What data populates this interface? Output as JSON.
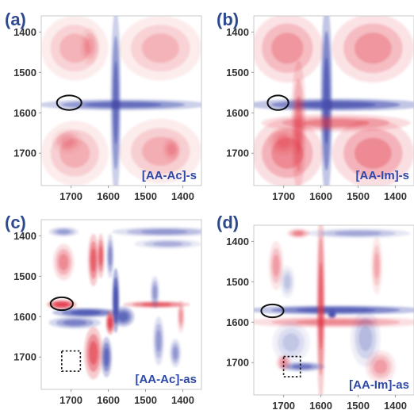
{
  "chart_data": [
    {
      "type": "heatmap",
      "panel_label": "(a)",
      "tag": "[AA-Ac]-s",
      "x_ticks": [
        1700,
        1600,
        1500,
        1400
      ],
      "y_ticks": [
        1400,
        1500,
        1600,
        1700
      ],
      "xlim": [
        1780,
        1350
      ],
      "ylim": [
        1360,
        1780
      ],
      "colors": {
        "positive": "#e03040",
        "negative": "#4550b0"
      },
      "features": [
        {
          "x": 1580,
          "y": 1580,
          "sign": 1,
          "rx": 11,
          "ry": 11,
          "a": 0.9
        },
        {
          "x": 1580,
          "y": 1575,
          "sign": -1,
          "rx": 14,
          "ry": 230,
          "a": 0.5
        },
        {
          "x": 1560,
          "y": 1580,
          "sign": -1,
          "rx": 230,
          "ry": 14,
          "a": 0.5
        },
        {
          "x": 1690,
          "y": 1440,
          "sign": 1,
          "rx": 90,
          "ry": 80,
          "a": 0.17
        },
        {
          "x": 1650,
          "y": 1435,
          "sign": 1,
          "rx": 25,
          "ry": 45,
          "a": 0.15
        },
        {
          "x": 1460,
          "y": 1440,
          "sign": 1,
          "rx": 110,
          "ry": 80,
          "a": 0.17
        },
        {
          "x": 1690,
          "y": 1700,
          "sign": 1,
          "rx": 90,
          "ry": 80,
          "a": 0.18
        },
        {
          "x": 1710,
          "y": 1670,
          "sign": 1,
          "rx": 40,
          "ry": 30,
          "a": 0.15
        },
        {
          "x": 1460,
          "y": 1695,
          "sign": 1,
          "rx": 110,
          "ry": 80,
          "a": 0.18
        },
        {
          "x": 1430,
          "y": 1690,
          "sign": 1,
          "rx": 25,
          "ry": 30,
          "a": 0.16
        }
      ],
      "solid_circle": {
        "x": 1705,
        "y": 1575,
        "rx": 33,
        "ry": 18
      },
      "dotted_box": null
    },
    {
      "type": "heatmap",
      "panel_label": "(b)",
      "tag": "[AA-Im]-s",
      "x_ticks": [
        1700,
        1600,
        1500,
        1400
      ],
      "y_ticks": [
        1400,
        1500,
        1600,
        1700
      ],
      "xlim": [
        1780,
        1350
      ],
      "ylim": [
        1360,
        1780
      ],
      "colors": {
        "positive": "#e03040",
        "negative": "#4550b0"
      },
      "features": [
        {
          "x": 1580,
          "y": 1580,
          "sign": 1,
          "rx": 11,
          "ry": 11,
          "a": 0.9
        },
        {
          "x": 1585,
          "y": 1570,
          "sign": -1,
          "rx": 16,
          "ry": 240,
          "a": 0.6
        },
        {
          "x": 1560,
          "y": 1580,
          "sign": -1,
          "rx": 240,
          "ry": 16,
          "a": 0.6
        },
        {
          "x": 1660,
          "y": 1630,
          "sign": 1,
          "rx": 20,
          "ry": 160,
          "a": 0.3
        },
        {
          "x": 1560,
          "y": 1625,
          "sign": 1,
          "rx": 200,
          "ry": 22,
          "a": 0.3
        },
        {
          "x": 1690,
          "y": 1440,
          "sign": 1,
          "rx": 95,
          "ry": 85,
          "a": 0.25
        },
        {
          "x": 1460,
          "y": 1440,
          "sign": 1,
          "rx": 110,
          "ry": 85,
          "a": 0.25
        },
        {
          "x": 1690,
          "y": 1700,
          "sign": 1,
          "rx": 95,
          "ry": 85,
          "a": 0.28
        },
        {
          "x": 1460,
          "y": 1700,
          "sign": 1,
          "rx": 110,
          "ry": 85,
          "a": 0.28
        },
        {
          "x": 1700,
          "y": 1670,
          "sign": 1,
          "rx": 40,
          "ry": 35,
          "a": 0.2
        }
      ],
      "solid_circle": {
        "x": 1715,
        "y": 1575,
        "rx": 28,
        "ry": 18
      },
      "dotted_box": null
    },
    {
      "type": "heatmap",
      "panel_label": "(c)",
      "tag": "[AA-Ac]-as",
      "x_ticks": [
        1700,
        1600,
        1500,
        1400
      ],
      "y_ticks": [
        1400,
        1500,
        1600,
        1700
      ],
      "xlim": [
        1780,
        1350
      ],
      "ylim": [
        1360,
        1780
      ],
      "colors": {
        "positive": "#e03040",
        "negative": "#4550b0"
      },
      "features": [
        {
          "x": 1580,
          "y": 1560,
          "sign": -1,
          "rx": 10,
          "ry": 80,
          "a": 0.8
        },
        {
          "x": 1640,
          "y": 1460,
          "sign": 1,
          "rx": 15,
          "ry": 65,
          "a": 0.45
        },
        {
          "x": 1620,
          "y": 1450,
          "sign": 1,
          "rx": 10,
          "ry": 55,
          "a": 0.45
        },
        {
          "x": 1595,
          "y": 1450,
          "sign": -1,
          "rx": 10,
          "ry": 55,
          "a": 0.35
        },
        {
          "x": 1450,
          "y": 1390,
          "sign": -1,
          "rx": 140,
          "ry": 12,
          "a": 0.3
        },
        {
          "x": 1720,
          "y": 1390,
          "sign": -1,
          "rx": 40,
          "ry": 12,
          "a": 0.28
        },
        {
          "x": 1440,
          "y": 1420,
          "sign": -1,
          "rx": 90,
          "ry": 12,
          "a": 0.22
        },
        {
          "x": 1720,
          "y": 1465,
          "sign": 1,
          "rx": 28,
          "ry": 45,
          "a": 0.28
        },
        {
          "x": 1725,
          "y": 1570,
          "sign": 1,
          "rx": 40,
          "ry": 12,
          "a": 0.6
        },
        {
          "x": 1470,
          "y": 1570,
          "sign": 1,
          "rx": 90,
          "ry": 9,
          "a": 0.45
        },
        {
          "x": 1660,
          "y": 1590,
          "sign": -1,
          "rx": 90,
          "ry": 12,
          "a": 0.65
        },
        {
          "x": 1690,
          "y": 1615,
          "sign": -1,
          "rx": 70,
          "ry": 15,
          "a": 0.4
        },
        {
          "x": 1560,
          "y": 1600,
          "sign": -1,
          "rx": 30,
          "ry": 25,
          "a": 0.55
        },
        {
          "x": 1595,
          "y": 1615,
          "sign": 1,
          "rx": 12,
          "ry": 30,
          "a": 0.6
        },
        {
          "x": 1605,
          "y": 1700,
          "sign": -1,
          "rx": 15,
          "ry": 50,
          "a": 0.55
        },
        {
          "x": 1640,
          "y": 1690,
          "sign": 1,
          "rx": 25,
          "ry": 65,
          "a": 0.45
        },
        {
          "x": 1475,
          "y": 1540,
          "sign": -1,
          "rx": 12,
          "ry": 40,
          "a": 0.3
        },
        {
          "x": 1465,
          "y": 1660,
          "sign": -1,
          "rx": 15,
          "ry": 60,
          "a": 0.3
        },
        {
          "x": 1420,
          "y": 1690,
          "sign": -1,
          "rx": 15,
          "ry": 35,
          "a": 0.3
        },
        {
          "x": 1405,
          "y": 1600,
          "sign": 1,
          "rx": 10,
          "ry": 40,
          "a": 0.25
        }
      ],
      "solid_circle": {
        "x": 1725,
        "y": 1568,
        "rx": 30,
        "ry": 16
      },
      "dotted_box": {
        "x1": 1725,
        "y1": 1685,
        "x2": 1675,
        "y2": 1735
      }
    },
    {
      "type": "heatmap",
      "panel_label": "(d)",
      "tag": "[AA-Im]-as",
      "x_ticks": [
        1700,
        1600,
        1500,
        1400
      ],
      "y_ticks": [
        1400,
        1500,
        1600,
        1700
      ],
      "xlim": [
        1780,
        1350
      ],
      "ylim": [
        1360,
        1780
      ],
      "colors": {
        "positive": "#e03040",
        "negative": "#4550b0"
      },
      "features": [
        {
          "x": 1560,
          "y": 1570,
          "sign": -1,
          "rx": 240,
          "ry": 12,
          "a": 0.6
        },
        {
          "x": 1570,
          "y": 1580,
          "sign": -1,
          "rx": 12,
          "ry": 12,
          "a": 0.8
        },
        {
          "x": 1600,
          "y": 1560,
          "sign": 1,
          "rx": 12,
          "ry": 240,
          "a": 0.42
        },
        {
          "x": 1560,
          "y": 1600,
          "sign": 1,
          "rx": 240,
          "ry": 14,
          "a": 0.28
        },
        {
          "x": 1500,
          "y": 1380,
          "sign": -1,
          "rx": 140,
          "ry": 12,
          "a": 0.25
        },
        {
          "x": 1660,
          "y": 1380,
          "sign": 1,
          "rx": 30,
          "ry": 12,
          "a": 0.3
        },
        {
          "x": 1720,
          "y": 1460,
          "sign": 1,
          "rx": 20,
          "ry": 60,
          "a": 0.22
        },
        {
          "x": 1450,
          "y": 1460,
          "sign": 1,
          "rx": 15,
          "ry": 70,
          "a": 0.2
        },
        {
          "x": 1690,
          "y": 1500,
          "sign": -1,
          "rx": 20,
          "ry": 40,
          "a": 0.15
        },
        {
          "x": 1480,
          "y": 1640,
          "sign": -1,
          "rx": 40,
          "ry": 70,
          "a": 0.18
        },
        {
          "x": 1680,
          "y": 1650,
          "sign": -1,
          "rx": 50,
          "ry": 50,
          "a": 0.14
        },
        {
          "x": 1650,
          "y": 1710,
          "sign": -1,
          "rx": 60,
          "ry": 12,
          "a": 0.45
        },
        {
          "x": 1440,
          "y": 1710,
          "sign": 1,
          "rx": 40,
          "ry": 40,
          "a": 0.22
        },
        {
          "x": 1700,
          "y": 1700,
          "sign": 1,
          "rx": 20,
          "ry": 20,
          "a": 0.25
        }
      ],
      "solid_circle": {
        "x": 1730,
        "y": 1572,
        "rx": 30,
        "ry": 16
      },
      "dotted_box": {
        "x1": 1700,
        "y1": 1685,
        "x2": 1655,
        "y2": 1735
      }
    }
  ]
}
